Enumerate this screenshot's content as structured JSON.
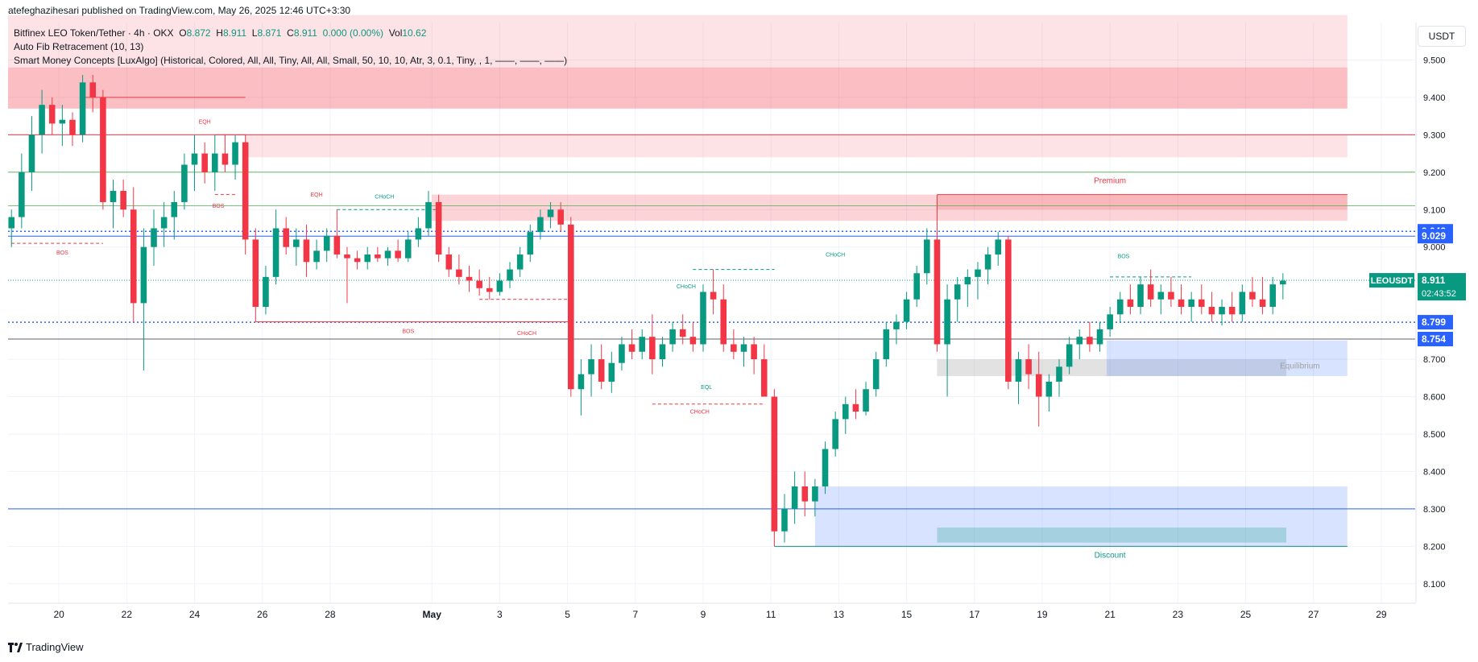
{
  "header": {
    "publisher": "atefeghazihesari published on TradingView.com, May 26, 2025 12:46 UTC+3:30",
    "symbol_line": "Bitfinex LEO Token/Tether · 4h · OKX",
    "ohlc": {
      "o_label": "O",
      "o": "8.872",
      "h_label": "H",
      "h": "8.911",
      "l_label": "L",
      "l": "8.871",
      "c_label": "C",
      "c": "8.911",
      "chg": "0.000 (0.00%)",
      "vol_label": "Vol",
      "vol": "10.62"
    },
    "indicator1": "Auto Fib Retracement (10, 13)",
    "indicator2": "Smart Money Concepts [LuxAlgo] (Historical, Colored, All, All, Tiny, All, All, Small, 50, 10, 10, Atr, 3, 0.1, Tiny, , 1, ——, ——, ——)"
  },
  "currency": "USDT",
  "footer_brand": "TradingView",
  "colors": {
    "up": "#089981",
    "down": "#f23645",
    "fib_blue": "#2962ff",
    "premium": "#f23645",
    "discount_zone": "#2962ff",
    "equilibrium": "#9e9e9e"
  },
  "chart_data": {
    "type": "candlestick",
    "symbol": "LEOUSDT",
    "timeframe": "4h",
    "ylim": [
      8.05,
      9.6
    ],
    "y_ticks": [
      "9.500",
      "9.400",
      "9.300",
      "9.200",
      "9.100",
      "9.000",
      "8.700",
      "8.600",
      "8.500",
      "8.400",
      "8.300",
      "8.200",
      "8.100"
    ],
    "x_ticks": [
      "20",
      "22",
      "24",
      "26",
      "28",
      "May",
      "3",
      "5",
      "7",
      "9",
      "11",
      "13",
      "15",
      "17",
      "19",
      "21",
      "23",
      "25",
      "27",
      "29"
    ],
    "x_tick_days": [
      20,
      22,
      24,
      26,
      28,
      31,
      33,
      35,
      37,
      39,
      41,
      43,
      45,
      47,
      49,
      51,
      53,
      55,
      57,
      59
    ],
    "x_start_day": 18.5,
    "x_end_day": 60,
    "price_badges": [
      {
        "label": "9.042",
        "value": 9.042,
        "color": "#2962ff"
      },
      {
        "label": "9.029",
        "value": 9.029,
        "color": "#2962ff"
      },
      {
        "symbol": "LEOUSDT",
        "label": "8.911",
        "value": 8.911,
        "countdown": "02:43:52",
        "color": "#089981"
      },
      {
        "label": "8.799",
        "value": 8.799,
        "color": "#2962ff"
      },
      {
        "label": "8.754",
        "value": 8.754,
        "color": "#2962ff"
      }
    ],
    "candles_by_day": [
      [
        18.6,
        9.05,
        9.1,
        9.0,
        9.08
      ],
      [
        18.9,
        9.08,
        9.25,
        9.05,
        9.2
      ],
      [
        19.2,
        9.2,
        9.35,
        9.15,
        9.3
      ],
      [
        19.5,
        9.3,
        9.42,
        9.25,
        9.38
      ],
      [
        19.8,
        9.38,
        9.4,
        9.3,
        9.33
      ],
      [
        20.1,
        9.33,
        9.38,
        9.27,
        9.34
      ],
      [
        20.4,
        9.34,
        9.36,
        9.27,
        9.3
      ],
      [
        20.7,
        9.3,
        9.46,
        9.28,
        9.44
      ],
      [
        21.0,
        9.44,
        9.46,
        9.36,
        9.4
      ],
      [
        21.3,
        9.4,
        9.42,
        9.1,
        9.12
      ],
      [
        21.6,
        9.12,
        9.18,
        9.05,
        9.15
      ],
      [
        21.9,
        9.15,
        9.18,
        9.08,
        9.1
      ],
      [
        22.2,
        9.1,
        9.16,
        8.8,
        8.85
      ],
      [
        22.5,
        8.85,
        9.05,
        8.67,
        9.0
      ],
      [
        22.8,
        9.0,
        9.1,
        8.95,
        9.05
      ],
      [
        23.1,
        9.05,
        9.12,
        9.0,
        9.08
      ],
      [
        23.4,
        9.08,
        9.15,
        9.02,
        9.12
      ],
      [
        23.7,
        9.12,
        9.25,
        9.1,
        9.22
      ],
      [
        24.0,
        9.22,
        9.3,
        9.15,
        9.25
      ],
      [
        24.3,
        9.25,
        9.28,
        9.17,
        9.2
      ],
      [
        24.6,
        9.2,
        9.3,
        9.15,
        9.25
      ],
      [
        24.9,
        9.25,
        9.3,
        9.2,
        9.22
      ],
      [
        25.2,
        9.22,
        9.3,
        9.18,
        9.28
      ],
      [
        25.5,
        9.28,
        9.3,
        8.98,
        9.02
      ],
      [
        25.8,
        9.02,
        9.05,
        8.8,
        8.84
      ],
      [
        26.1,
        8.84,
        8.95,
        8.82,
        8.92
      ],
      [
        26.4,
        8.92,
        9.1,
        8.9,
        9.05
      ],
      [
        26.7,
        9.05,
        9.08,
        8.98,
        9.0
      ],
      [
        27.0,
        9.0,
        9.05,
        8.95,
        9.02
      ],
      [
        27.3,
        9.02,
        9.06,
        8.92,
        8.96
      ],
      [
        27.6,
        8.96,
        9.02,
        8.94,
        8.99
      ],
      [
        27.9,
        8.99,
        9.05,
        8.96,
        9.03
      ],
      [
        28.2,
        9.03,
        9.1,
        8.97,
        8.98
      ],
      [
        28.5,
        8.98,
        9.0,
        8.85,
        8.97
      ],
      [
        28.8,
        8.97,
        8.99,
        8.94,
        8.96
      ],
      [
        29.1,
        8.96,
        9.0,
        8.94,
        8.98
      ],
      [
        29.4,
        8.98,
        9.0,
        8.96,
        8.97
      ],
      [
        29.7,
        8.97,
        9.0,
        8.95,
        8.99
      ],
      [
        30.0,
        8.99,
        9.02,
        8.96,
        8.97
      ],
      [
        30.3,
        8.97,
        9.04,
        8.96,
        9.02
      ],
      [
        30.6,
        9.02,
        9.08,
        9.0,
        9.05
      ],
      [
        30.9,
        9.05,
        9.15,
        9.03,
        9.12
      ],
      [
        31.2,
        9.12,
        9.14,
        8.96,
        8.98
      ],
      [
        31.5,
        8.98,
        9.0,
        8.92,
        8.94
      ],
      [
        31.8,
        8.94,
        8.98,
        8.9,
        8.92
      ],
      [
        32.1,
        8.92,
        8.95,
        8.88,
        8.91
      ],
      [
        32.4,
        8.91,
        8.94,
        8.87,
        8.89
      ],
      [
        32.7,
        8.89,
        8.92,
        8.86,
        8.88
      ],
      [
        33.0,
        8.88,
        8.93,
        8.87,
        8.91
      ],
      [
        33.3,
        8.91,
        8.96,
        8.89,
        8.94
      ],
      [
        33.6,
        8.94,
        9.0,
        8.92,
        8.98
      ],
      [
        33.9,
        8.98,
        9.06,
        8.96,
        9.04
      ],
      [
        34.2,
        9.04,
        9.1,
        9.02,
        9.08
      ],
      [
        34.5,
        9.08,
        9.12,
        9.05,
        9.1
      ],
      [
        34.8,
        9.1,
        9.12,
        9.04,
        9.06
      ],
      [
        35.1,
        9.06,
        9.08,
        8.6,
        8.62
      ],
      [
        35.4,
        8.62,
        8.7,
        8.55,
        8.66
      ],
      [
        35.7,
        8.66,
        8.74,
        8.6,
        8.7
      ],
      [
        36.0,
        8.7,
        8.74,
        8.62,
        8.64
      ],
      [
        36.3,
        8.64,
        8.72,
        8.61,
        8.69
      ],
      [
        36.6,
        8.69,
        8.76,
        8.67,
        8.74
      ],
      [
        36.9,
        8.74,
        8.78,
        8.7,
        8.72
      ],
      [
        37.2,
        8.72,
        8.78,
        8.7,
        8.76
      ],
      [
        37.5,
        8.76,
        8.82,
        8.66,
        8.7
      ],
      [
        37.8,
        8.7,
        8.76,
        8.68,
        8.74
      ],
      [
        38.1,
        8.74,
        8.8,
        8.72,
        8.78
      ],
      [
        38.4,
        8.78,
        8.82,
        8.74,
        8.76
      ],
      [
        38.7,
        8.76,
        8.8,
        8.72,
        8.74
      ],
      [
        39.0,
        8.74,
        8.9,
        8.72,
        8.88
      ],
      [
        39.3,
        8.88,
        8.94,
        8.82,
        8.86
      ],
      [
        39.6,
        8.86,
        8.9,
        8.72,
        8.74
      ],
      [
        39.9,
        8.74,
        8.78,
        8.7,
        8.72
      ],
      [
        40.2,
        8.72,
        8.76,
        8.68,
        8.74
      ],
      [
        40.5,
        8.74,
        8.76,
        8.66,
        8.7
      ],
      [
        40.8,
        8.7,
        8.74,
        8.62,
        8.6
      ],
      [
        41.1,
        8.6,
        8.62,
        8.2,
        8.24
      ],
      [
        41.4,
        8.24,
        8.34,
        8.21,
        8.3
      ],
      [
        41.7,
        8.3,
        8.4,
        8.26,
        8.36
      ],
      [
        42.0,
        8.36,
        8.4,
        8.28,
        8.32
      ],
      [
        42.3,
        8.32,
        8.38,
        8.28,
        8.36
      ],
      [
        42.6,
        8.36,
        8.48,
        8.34,
        8.46
      ],
      [
        42.9,
        8.46,
        8.56,
        8.44,
        8.54
      ],
      [
        43.2,
        8.54,
        8.6,
        8.5,
        8.58
      ],
      [
        43.5,
        8.58,
        8.62,
        8.54,
        8.56
      ],
      [
        43.8,
        8.56,
        8.64,
        8.55,
        8.62
      ],
      [
        44.1,
        8.62,
        8.72,
        8.6,
        8.7
      ],
      [
        44.4,
        8.7,
        8.8,
        8.68,
        8.78
      ],
      [
        44.7,
        8.78,
        8.82,
        8.74,
        8.8
      ],
      [
        45.0,
        8.8,
        8.88,
        8.78,
        8.86
      ],
      [
        45.3,
        8.86,
        8.95,
        8.84,
        8.93
      ],
      [
        45.6,
        8.93,
        9.05,
        8.9,
        9.02
      ],
      [
        45.9,
        9.02,
        9.04,
        8.72,
        8.74
      ],
      [
        46.2,
        8.74,
        8.9,
        8.6,
        8.86
      ],
      [
        46.5,
        8.86,
        8.92,
        8.8,
        8.9
      ],
      [
        46.8,
        8.9,
        8.94,
        8.84,
        8.92
      ],
      [
        47.1,
        8.92,
        8.96,
        8.86,
        8.94
      ],
      [
        47.4,
        8.94,
        9.0,
        8.9,
        8.98
      ],
      [
        47.7,
        8.98,
        9.04,
        8.95,
        9.02
      ],
      [
        48.0,
        9.02,
        9.03,
        8.62,
        8.64
      ],
      [
        48.3,
        8.64,
        8.72,
        8.58,
        8.7
      ],
      [
        48.6,
        8.7,
        8.74,
        8.62,
        8.66
      ],
      [
        48.9,
        8.66,
        8.72,
        8.52,
        8.6
      ],
      [
        49.2,
        8.6,
        8.66,
        8.56,
        8.64
      ],
      [
        49.5,
        8.64,
        8.7,
        8.6,
        8.68
      ],
      [
        49.8,
        8.68,
        8.76,
        8.66,
        8.74
      ],
      [
        50.1,
        8.74,
        8.78,
        8.7,
        8.76
      ],
      [
        50.4,
        8.76,
        8.8,
        8.72,
        8.74
      ],
      [
        50.7,
        8.74,
        8.8,
        8.72,
        8.78
      ],
      [
        51.0,
        8.78,
        8.84,
        8.76,
        8.82
      ],
      [
        51.3,
        8.82,
        8.88,
        8.8,
        8.86
      ],
      [
        51.6,
        8.86,
        8.9,
        8.82,
        8.84
      ],
      [
        51.9,
        8.84,
        8.92,
        8.82,
        8.9
      ],
      [
        52.2,
        8.9,
        8.94,
        8.84,
        8.86
      ],
      [
        52.5,
        8.86,
        8.9,
        8.82,
        8.88
      ],
      [
        52.8,
        8.88,
        8.92,
        8.84,
        8.86
      ],
      [
        53.1,
        8.86,
        8.9,
        8.82,
        8.84
      ],
      [
        53.4,
        8.84,
        8.88,
        8.8,
        8.86
      ],
      [
        53.7,
        8.86,
        8.9,
        8.82,
        8.84
      ],
      [
        54.0,
        8.84,
        8.88,
        8.8,
        8.82
      ],
      [
        54.3,
        8.82,
        8.86,
        8.79,
        8.84
      ],
      [
        54.6,
        8.84,
        8.88,
        8.8,
        8.82
      ],
      [
        54.9,
        8.82,
        8.9,
        8.8,
        8.88
      ],
      [
        55.2,
        8.88,
        8.92,
        8.84,
        8.86
      ],
      [
        55.5,
        8.86,
        8.92,
        8.82,
        8.84
      ],
      [
        55.8,
        8.84,
        8.92,
        8.82,
        8.9
      ],
      [
        56.1,
        8.9,
        8.93,
        8.86,
        8.91
      ]
    ]
  },
  "annotations": {
    "zones": [
      {
        "name": "premium-zone-top",
        "y0": 9.48,
        "y1": 9.62,
        "color": "#f23645",
        "alpha": 0.14,
        "x0": 18.5,
        "x1": 58
      },
      {
        "name": "premium-zone-band",
        "y0": 9.37,
        "y1": 9.48,
        "color": "#f23645",
        "alpha": 0.32,
        "x0": 18.5,
        "x1": 58
      },
      {
        "name": "supply-zone-1",
        "y0": 9.24,
        "y1": 9.3,
        "color": "#f23645",
        "alpha": 0.14,
        "x0": 25.5,
        "x1": 58
      },
      {
        "name": "supply-zone-2",
        "y0": 9.07,
        "y1": 9.14,
        "color": "#f23645",
        "alpha": 0.22,
        "x0": 31,
        "x1": 58
      },
      {
        "name": "premium-box",
        "y0": 9.1,
        "y1": 9.14,
        "color": "#f23645",
        "alpha": 0.18,
        "x0": 45.9,
        "x1": 58
      },
      {
        "name": "equilibrium-box",
        "y0": 8.655,
        "y1": 8.7,
        "color": "#9e9e9e",
        "alpha": 0.3,
        "x0": 45.9,
        "x1": 56.2
      },
      {
        "name": "demand-zone-upper",
        "y0": 8.655,
        "y1": 8.75,
        "color": "#2962ff",
        "alpha": 0.18,
        "x0": 50.9,
        "x1": 58
      },
      {
        "name": "discount-zone",
        "y0": 8.2,
        "y1": 8.36,
        "color": "#2962ff",
        "alpha": 0.18,
        "x0": 42.3,
        "x1": 58
      },
      {
        "name": "discount-box",
        "y0": 8.21,
        "y1": 8.25,
        "color": "#089981",
        "alpha": 0.25,
        "x0": 45.9,
        "x1": 56.2
      }
    ],
    "labels": [
      {
        "text": "EQH",
        "day": 24.3,
        "price": 9.33,
        "color": "#f23645"
      },
      {
        "text": "EQH",
        "day": 27.6,
        "price": 9.135,
        "color": "#f23645"
      },
      {
        "text": "CHoCH",
        "day": 29.6,
        "price": 9.13,
        "color": "#089981"
      },
      {
        "text": "BOS",
        "day": 24.7,
        "price": 9.105,
        "color": "#f23645"
      },
      {
        "text": "BOS",
        "day": 20.1,
        "price": 8.98,
        "color": "#f23645"
      },
      {
        "text": "CHoCH",
        "day": 33.8,
        "price": 8.765,
        "color": "#f23645"
      },
      {
        "text": "BOS",
        "day": 30.3,
        "price": 8.77,
        "color": "#f23645"
      },
      {
        "text": "CHoCH",
        "day": 38.5,
        "price": 8.89,
        "color": "#089981"
      },
      {
        "text": "CHoCH",
        "day": 42.9,
        "price": 8.975,
        "color": "#089981"
      },
      {
        "text": "EQL",
        "day": 39.1,
        "price": 8.62,
        "color": "#089981"
      },
      {
        "text": "CHoCH",
        "day": 38.9,
        "price": 8.555,
        "color": "#f23645"
      },
      {
        "text": "BOS",
        "day": 51.4,
        "price": 8.97,
        "color": "#089981"
      },
      {
        "text": "Premium",
        "day": 51.0,
        "price": 9.17,
        "color": "#f23645"
      },
      {
        "text": "Equilibrium",
        "day": 56.6,
        "price": 8.675,
        "color": "#9e9e9e"
      },
      {
        "text": "Discount",
        "day": 51.0,
        "price": 8.17,
        "color": "#089981"
      }
    ]
  }
}
